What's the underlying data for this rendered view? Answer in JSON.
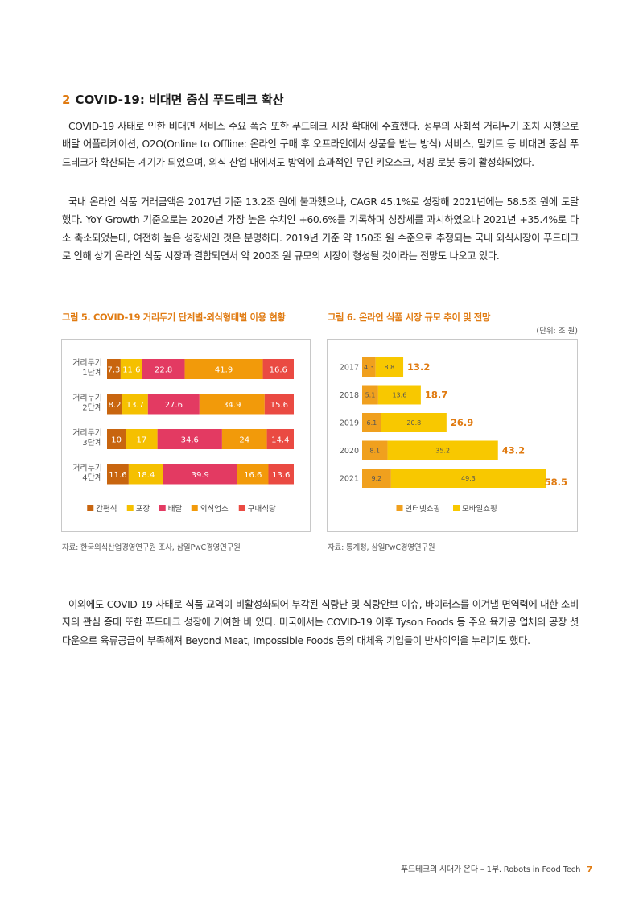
{
  "section": {
    "number": "2",
    "title": "COVID-19: 비대면 중심 푸드테크 확산"
  },
  "paragraphs": [
    "COVID-19 사태로 인한 비대면 서비스 수요 폭증 또한 푸드테크 시장 확대에 주효했다. 정부의 사회적 거리두기 조치 시행으로 배달 어플리케이션, O2O(Online to Offline: 온라인 구매 후 오프라인에서 상품을 받는 방식) 서비스, 밀키트 등 비대면 중심 푸드테크가 확산되는 계기가 되었으며, 외식 산업 내에서도 방역에 효과적인 무인 키오스크, 서빙 로봇 등이 활성화되었다.",
    "국내 온라인 식품 거래금액은 2017년 기준 13.2조 원에 불과했으나, CAGR 45.1%로 성장해 2021년에는 58.5조 원에 도달했다. YoY Growth 기준으로는 2020년 가장 높은 수치인 +60.6%를 기록하며 성장세를 과시하였으나 2021년 +35.4%로 다소 축소되었는데, 여전히 높은 성장세인 것은 분명하다. 2019년 기준 약 150조 원 수준으로 추정되는 국내 외식시장이 푸드테크로 인해 상기 온라인 식품 시장과 결합되면서 약 200조 원 규모의 시장이 형성될 것이라는 전망도 나오고 있다.",
    "이외에도 COVID-19 사태로 식품 교역이 비활성화되어 부각된 식량난 및 식량안보 이슈, 바이러스를 이겨낼 면역력에 대한 소비자의 관심 증대 또한 푸드테크 성장에 기여한 바 있다. 미국에서는 COVID-19 이후 Tyson Foods 등 주요 육가공 업체의 공장 셧다운으로 육류공급이 부족해져 Beyond Meat, Impossible Foods 등의 대체육 기업들이 반사이익을 누리기도 했다."
  ],
  "figure5": {
    "title": "그림 5. COVID-19 거리두기 단계별-외식형태별 이용 현황",
    "source": "자료: 한국외식산업경영연구원 조사, 삼일PwC경영연구원"
  },
  "figure6": {
    "title": "그림 6. 온라인 식품 시장 규모 추이 및 전망",
    "unit": "(단위: 조 원)",
    "source": "자료: 통계청, 삼일PwC경영연구원"
  },
  "chart_data": [
    {
      "type": "bar",
      "orientation": "horizontal",
      "stacked": true,
      "categories": [
        [
          "거리두기",
          "1단계"
        ],
        [
          "거리두기",
          "2단계"
        ],
        [
          "거리두기",
          "3단계"
        ],
        [
          "거리두기",
          "4단계"
        ]
      ],
      "series": [
        {
          "name": "간편식",
          "color": "#c8650f",
          "values": [
            7.3,
            8.2,
            10,
            11.6
          ]
        },
        {
          "name": "포장",
          "color": "#f5c000",
          "values": [
            11.6,
            13.7,
            17,
            18.4
          ]
        },
        {
          "name": "배달",
          "color": "#e33a62",
          "values": [
            22.8,
            27.6,
            34.6,
            39.9
          ]
        },
        {
          "name": "외식업소",
          "color": "#f29a0a",
          "values": [
            41.9,
            34.9,
            24,
            16.6
          ]
        },
        {
          "name": "구내식당",
          "color": "#ea4a42",
          "values": [
            16.6,
            15.6,
            14.4,
            13.6
          ]
        }
      ],
      "legend": "bottom"
    },
    {
      "type": "bar",
      "orientation": "horizontal",
      "stacked": true,
      "categories": [
        "2017",
        "2018",
        "2019",
        "2020",
        "2021"
      ],
      "series": [
        {
          "name": "인터넷쇼핑",
          "color": "#f0a01e",
          "values": [
            4.3,
            5.1,
            6.1,
            8.1,
            9.2
          ]
        },
        {
          "name": "모바일쇼핑",
          "color": "#f8c800",
          "values": [
            8.8,
            13.6,
            20.8,
            35.2,
            49.3
          ]
        }
      ],
      "totals": [
        13.2,
        18.7,
        26.9,
        43.2,
        58.5
      ],
      "total_color": "#e07b12",
      "legend": "bottom"
    }
  ],
  "footer": {
    "text": "푸드테크의 시대가 온다 – 1부. Robots in Food Tech",
    "page": "7"
  }
}
